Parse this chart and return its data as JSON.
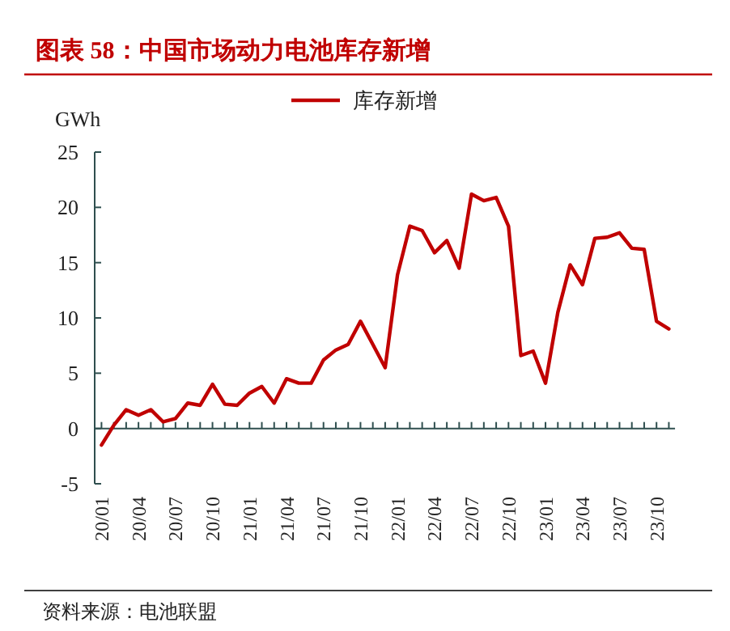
{
  "chart_data": {
    "type": "line",
    "title": "图表 58：中国市场动力电池库存新增",
    "ylabel": "GWh",
    "annotations": [
      "资料来源：电池联盟"
    ],
    "categories": [
      "20/01",
      null,
      null,
      "20/04",
      null,
      null,
      "20/07",
      null,
      null,
      "20/10",
      null,
      null,
      "21/01",
      null,
      null,
      "21/04",
      null,
      null,
      "21/07",
      null,
      null,
      "21/10",
      null,
      null,
      "22/01",
      null,
      null,
      "22/04",
      null,
      null,
      "22/07",
      null,
      null,
      "22/10",
      null,
      null,
      "23/01",
      null,
      null,
      "23/04",
      null,
      null,
      "23/07",
      null,
      null,
      "23/10",
      null
    ],
    "series": [
      {
        "name": "库存新增",
        "color": "#c00000",
        "values": [
          -1.5,
          0.3,
          1.7,
          1.2,
          1.7,
          0.6,
          0.9,
          2.3,
          2.1,
          4.0,
          2.2,
          2.1,
          3.2,
          3.8,
          2.3,
          4.5,
          4.1,
          4.1,
          6.2,
          7.1,
          7.6,
          9.7,
          7.6,
          5.5,
          13.9,
          18.3,
          17.9,
          15.9,
          17.0,
          14.5,
          21.2,
          20.6,
          20.9,
          18.3,
          6.6,
          7.0,
          4.1,
          10.5,
          14.8,
          13.0,
          17.2,
          17.3,
          17.7,
          16.3,
          16.2,
          9.7,
          9.0
        ]
      }
    ],
    "ylim": [
      -5,
      25
    ],
    "yticks": [
      -5,
      0,
      5,
      10,
      15,
      20,
      25
    ],
    "legend": "top right"
  }
}
